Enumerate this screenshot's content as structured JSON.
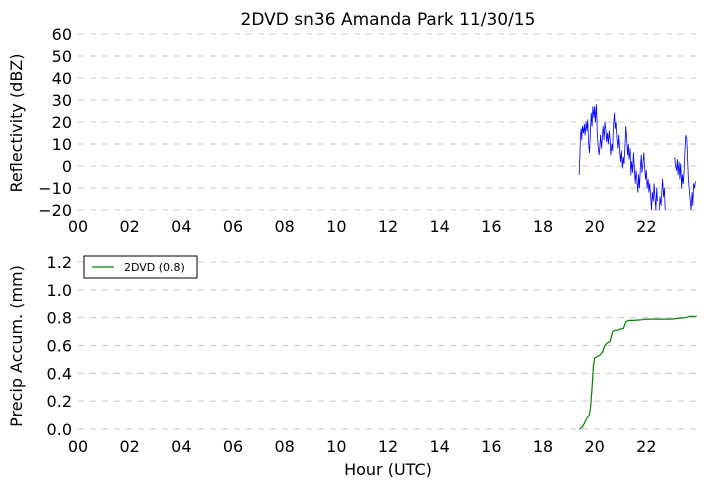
{
  "chart_data": [
    {
      "type": "line",
      "title": "2DVD sn36 Amanda Park 11/30/15",
      "xlabel": "",
      "ylabel": "Reflectivity (dBZ)",
      "xlim": [
        0,
        24
      ],
      "ylim": [
        -20,
        60
      ],
      "xticks": [
        "00",
        "02",
        "04",
        "06",
        "08",
        "10",
        "12",
        "14",
        "16",
        "18",
        "20",
        "22"
      ],
      "yticks": [
        "60",
        "50",
        "40",
        "30",
        "20",
        "10",
        "0",
        "−10",
        "−20"
      ],
      "grid": "horizontal dashed",
      "series": [
        {
          "color": "#0000ff",
          "segments": [
            [
              [
                19.4,
                -4
              ],
              [
                19.42,
                2
              ],
              [
                19.45,
                14
              ],
              [
                19.48,
                17
              ],
              [
                19.5,
                12
              ],
              [
                19.53,
                18
              ],
              [
                19.57,
                15
              ],
              [
                19.6,
                19
              ],
              [
                19.63,
                14
              ],
              [
                19.67,
                20
              ],
              [
                19.7,
                16
              ],
              [
                19.73,
                21
              ],
              [
                19.77,
                10
              ],
              [
                19.8,
                6
              ],
              [
                19.83,
                14
              ],
              [
                19.87,
                24
              ],
              [
                19.9,
                18
              ],
              [
                19.93,
                27
              ],
              [
                19.97,
                22
              ],
              [
                20.0,
                27
              ],
              [
                20.03,
                20
              ],
              [
                20.07,
                28
              ],
              [
                20.1,
                15
              ],
              [
                20.13,
                10
              ],
              [
                20.17,
                5
              ],
              [
                20.2,
                8
              ],
              [
                20.23,
                14
              ],
              [
                20.27,
                8
              ],
              [
                20.3,
                13
              ],
              [
                20.33,
                18
              ],
              [
                20.37,
                12
              ],
              [
                20.4,
                20
              ],
              [
                20.43,
                17
              ],
              [
                20.47,
                11
              ],
              [
                20.5,
                15
              ],
              [
                20.53,
                10
              ],
              [
                20.57,
                16
              ],
              [
                20.6,
                12
              ],
              [
                20.63,
                5
              ],
              [
                20.67,
                10
              ],
              [
                20.7,
                7
              ],
              [
                20.73,
                18
              ],
              [
                20.77,
                24
              ],
              [
                20.8,
                17
              ],
              [
                20.83,
                20
              ],
              [
                20.87,
                12
              ],
              [
                20.9,
                8
              ],
              [
                20.93,
                14
              ],
              [
                20.97,
                6
              ],
              [
                21.0,
                2
              ],
              [
                21.03,
                7
              ],
              [
                21.07,
                -1
              ],
              [
                21.1,
                4
              ],
              [
                21.13,
                1
              ],
              [
                21.17,
                9
              ],
              [
                21.2,
                18
              ],
              [
                21.23,
                14
              ],
              [
                21.27,
                5
              ],
              [
                21.3,
                10
              ],
              [
                21.33,
                3
              ],
              [
                21.37,
                8
              ],
              [
                21.4,
                -4
              ],
              [
                21.43,
                2
              ],
              [
                21.47,
                -3
              ],
              [
                21.5,
                6
              ],
              [
                21.53,
                0
              ],
              [
                21.57,
                -8
              ],
              [
                21.6,
                -2
              ],
              [
                21.63,
                -6
              ],
              [
                21.67,
                -12
              ],
              [
                21.7,
                -4
              ],
              [
                21.73,
                -10
              ],
              [
                21.77,
                0
              ],
              [
                21.8,
                5
              ],
              [
                21.83,
                -3
              ],
              [
                21.87,
                2
              ],
              [
                21.9,
                6
              ],
              [
                21.93,
                0
              ],
              [
                21.97,
                -6
              ],
              [
                22.0,
                -2
              ],
              [
                22.03,
                -10
              ],
              [
                22.07,
                -6
              ],
              [
                22.1,
                -12
              ],
              [
                22.13,
                -8
              ],
              [
                22.17,
                -14
              ],
              [
                22.2,
                -20
              ],
              [
                22.23,
                -12
              ],
              [
                22.27,
                -16
              ],
              [
                22.3,
                -8
              ],
              [
                22.33,
                -14
              ],
              [
                22.37,
                -20
              ],
              [
                22.4,
                -10
              ],
              [
                22.43,
                -16
              ]
            ],
            [
              [
                22.5,
                -20
              ],
              [
                22.53,
                -14
              ],
              [
                22.57,
                -18
              ],
              [
                22.6,
                -12
              ],
              [
                22.63,
                -6
              ],
              [
                22.67,
                -14
              ],
              [
                22.7,
                -10
              ],
              [
                22.73,
                -20
              ]
            ],
            [
              [
                23.1,
                4
              ],
              [
                23.13,
                0
              ],
              [
                23.17,
                -2
              ],
              [
                23.2,
                3
              ],
              [
                23.23,
                -4
              ],
              [
                23.27,
                2
              ],
              [
                23.3,
                -6
              ],
              [
                23.33,
                1
              ],
              [
                23.37,
                -10
              ],
              [
                23.4,
                -4
              ],
              [
                23.43,
                -8
              ],
              [
                23.47,
                -1
              ],
              [
                23.5,
                8
              ],
              [
                23.53,
                14
              ],
              [
                23.57,
                12
              ],
              [
                23.6,
                2
              ],
              [
                23.63,
                -6
              ],
              [
                23.67,
                -12
              ],
              [
                23.7,
                -16
              ],
              [
                23.73,
                -20
              ],
              [
                23.77,
                -12
              ],
              [
                23.8,
                -18
              ],
              [
                23.83,
                -8
              ],
              [
                23.87,
                -10
              ],
              [
                23.9,
                -7
              ]
            ]
          ]
        }
      ]
    },
    {
      "type": "line",
      "title": "",
      "xlabel": "Hour (UTC)",
      "ylabel": "Precip Accum. (mm)",
      "xlim": [
        0,
        24
      ],
      "ylim": [
        0,
        1.2
      ],
      "xticks": [
        "00",
        "02",
        "04",
        "06",
        "08",
        "10",
        "12",
        "14",
        "16",
        "18",
        "20",
        "22"
      ],
      "yticks": [
        "1.2",
        "1.0",
        "0.8",
        "0.6",
        "0.4",
        "0.2",
        "0.0"
      ],
      "grid": "horizontal dashed",
      "legend": "top-left",
      "series": [
        {
          "name": "2DVD (0.8)",
          "color": "#008000",
          "points": [
            [
              19.4,
              0.0
            ],
            [
              19.5,
              0.01
            ],
            [
              19.6,
              0.04
            ],
            [
              19.7,
              0.08
            ],
            [
              19.8,
              0.1
            ],
            [
              19.85,
              0.17
            ],
            [
              19.9,
              0.3
            ],
            [
              19.95,
              0.45
            ],
            [
              20.0,
              0.51
            ],
            [
              20.1,
              0.52
            ],
            [
              20.2,
              0.53
            ],
            [
              20.3,
              0.55
            ],
            [
              20.4,
              0.6
            ],
            [
              20.5,
              0.62
            ],
            [
              20.6,
              0.63
            ],
            [
              20.7,
              0.7
            ],
            [
              20.8,
              0.71
            ],
            [
              20.9,
              0.71
            ],
            [
              21.0,
              0.72
            ],
            [
              21.1,
              0.72
            ],
            [
              21.2,
              0.77
            ],
            [
              21.3,
              0.78
            ],
            [
              21.5,
              0.78
            ],
            [
              21.8,
              0.785
            ],
            [
              22.0,
              0.79
            ],
            [
              22.3,
              0.79
            ],
            [
              22.6,
              0.79
            ],
            [
              23.0,
              0.79
            ],
            [
              23.2,
              0.795
            ],
            [
              23.5,
              0.8
            ],
            [
              23.7,
              0.81
            ],
            [
              23.8,
              0.81
            ],
            [
              23.95,
              0.81
            ]
          ]
        }
      ]
    }
  ]
}
